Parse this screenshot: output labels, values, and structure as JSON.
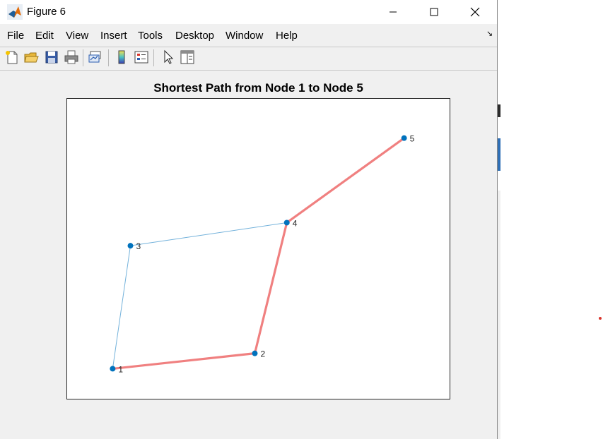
{
  "window": {
    "title": "Figure 6"
  },
  "menu": {
    "items": [
      "File",
      "Edit",
      "View",
      "Insert",
      "Tools",
      "Desktop",
      "Window",
      "Help"
    ]
  },
  "toolbar": {
    "icons": [
      "new-figure-icon",
      "open-file-icon",
      "save-icon",
      "print-icon",
      "link-plot-icon",
      "insert-colorbar-icon",
      "insert-legend-icon",
      "edit-plot-icon",
      "property-inspector-icon"
    ]
  },
  "plot": {
    "title": "Shortest Path from Node 1 to Node 5"
  },
  "chart_data": {
    "type": "graph",
    "title": "Shortest Path from Node 1 to Node 5",
    "nodes": [
      {
        "id": "1",
        "x": 0.0,
        "y": 0.0
      },
      {
        "id": "2",
        "x": 2.0,
        "y": 0.1
      },
      {
        "id": "3",
        "x": 0.25,
        "y": 0.8
      },
      {
        "id": "4",
        "x": 2.45,
        "y": 0.95
      },
      {
        "id": "5",
        "x": 4.1,
        "y": 1.5
      }
    ],
    "edges": [
      {
        "from": "1",
        "to": "2",
        "highlighted": true
      },
      {
        "from": "2",
        "to": "4",
        "highlighted": true
      },
      {
        "from": "4",
        "to": "5",
        "highlighted": true
      },
      {
        "from": "1",
        "to": "3",
        "highlighted": false
      },
      {
        "from": "3",
        "to": "4",
        "highlighted": false
      }
    ],
    "xlim": [
      -0.65,
      4.75
    ],
    "ylim": [
      -0.2,
      1.76
    ],
    "colors": {
      "node": "#0072bd",
      "edge": "#0072bd",
      "highlight": "#f08080"
    }
  }
}
